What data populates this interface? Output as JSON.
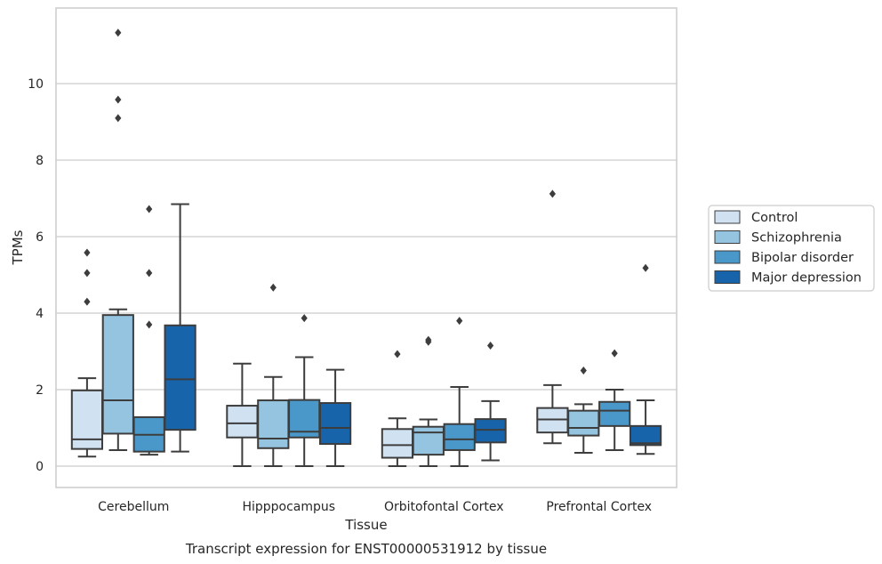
{
  "chart_data": {
    "type": "box",
    "title": "Transcript expression for ENST00000531912 by tissue",
    "xlabel": "Tissue",
    "ylabel": "TPMs",
    "ylim": [
      -0.55,
      12.0
    ],
    "yticks": [
      0,
      2,
      4,
      6,
      8,
      10
    ],
    "grid": "horizontal",
    "legend_position": "right",
    "categories": [
      "Cerebellum",
      "Hipppocampus",
      "Orbitofontal Cortex",
      "Prefrontal Cortex"
    ],
    "series": [
      {
        "name": "Control",
        "color": "#d0e1f2",
        "boxes": [
          {
            "whisker_low": 0.25,
            "q1": 0.45,
            "median": 0.7,
            "q3": 1.98,
            "whisker_high": 2.3,
            "outliers": [
              4.3,
              5.05,
              5.58
            ]
          },
          {
            "whisker_low": 0.0,
            "q1": 0.75,
            "median": 1.12,
            "q3": 1.58,
            "whisker_high": 2.68,
            "outliers": []
          },
          {
            "whisker_low": 0.0,
            "q1": 0.22,
            "median": 0.55,
            "q3": 0.97,
            "whisker_high": 1.25,
            "outliers": [
              2.93
            ]
          },
          {
            "whisker_low": 0.6,
            "q1": 0.88,
            "median": 1.22,
            "q3": 1.52,
            "whisker_high": 2.12,
            "outliers": [
              7.12
            ]
          }
        ]
      },
      {
        "name": "Schizophrenia",
        "color": "#94c4df",
        "boxes": [
          {
            "whisker_low": 0.42,
            "q1": 0.85,
            "median": 1.72,
            "q3": 3.95,
            "whisker_high": 4.1,
            "outliers": [
              9.1,
              9.58,
              11.33
            ]
          },
          {
            "whisker_low": 0.0,
            "q1": 0.47,
            "median": 0.72,
            "q3": 1.72,
            "whisker_high": 2.33,
            "outliers": [
              4.67
            ]
          },
          {
            "whisker_low": 0.0,
            "q1": 0.3,
            "median": 0.88,
            "q3": 1.03,
            "whisker_high": 1.22,
            "outliers": [
              3.25,
              3.3
            ]
          },
          {
            "whisker_low": 0.35,
            "q1": 0.8,
            "median": 1.0,
            "q3": 1.45,
            "whisker_high": 1.62,
            "outliers": [
              2.5
            ]
          }
        ]
      },
      {
        "name": "Bipolar disorder",
        "color": "#4a98c9",
        "boxes": [
          {
            "whisker_low": 0.3,
            "q1": 0.38,
            "median": 0.82,
            "q3": 1.28,
            "whisker_high": 1.28,
            "outliers": [
              3.7,
              5.05,
              6.72
            ]
          },
          {
            "whisker_low": 0.0,
            "q1": 0.75,
            "median": 0.9,
            "q3": 1.73,
            "whisker_high": 2.85,
            "outliers": [
              3.87
            ]
          },
          {
            "whisker_low": 0.0,
            "q1": 0.42,
            "median": 0.7,
            "q3": 1.1,
            "whisker_high": 2.07,
            "outliers": [
              3.8
            ]
          },
          {
            "whisker_low": 0.42,
            "q1": 1.05,
            "median": 1.45,
            "q3": 1.68,
            "whisker_high": 2.0,
            "outliers": [
              2.95
            ]
          }
        ]
      },
      {
        "name": "Major depression",
        "color": "#1764ab",
        "boxes": [
          {
            "whisker_low": 0.38,
            "q1": 0.95,
            "median": 2.27,
            "q3": 3.68,
            "whisker_high": 6.85,
            "outliers": []
          },
          {
            "whisker_low": 0.0,
            "q1": 0.58,
            "median": 1.0,
            "q3": 1.65,
            "whisker_high": 2.52,
            "outliers": []
          },
          {
            "whisker_low": 0.15,
            "q1": 0.62,
            "median": 0.95,
            "q3": 1.23,
            "whisker_high": 1.7,
            "outliers": [
              3.15
            ]
          },
          {
            "whisker_low": 0.32,
            "q1": 0.55,
            "median": 0.6,
            "q3": 1.05,
            "whisker_high": 1.72,
            "outliers": [
              5.18
            ]
          }
        ]
      }
    ]
  },
  "colors": {
    "frame": "#cccccc",
    "grid": "#cccccc",
    "line": "#3d3d3d",
    "text": "#262626"
  }
}
